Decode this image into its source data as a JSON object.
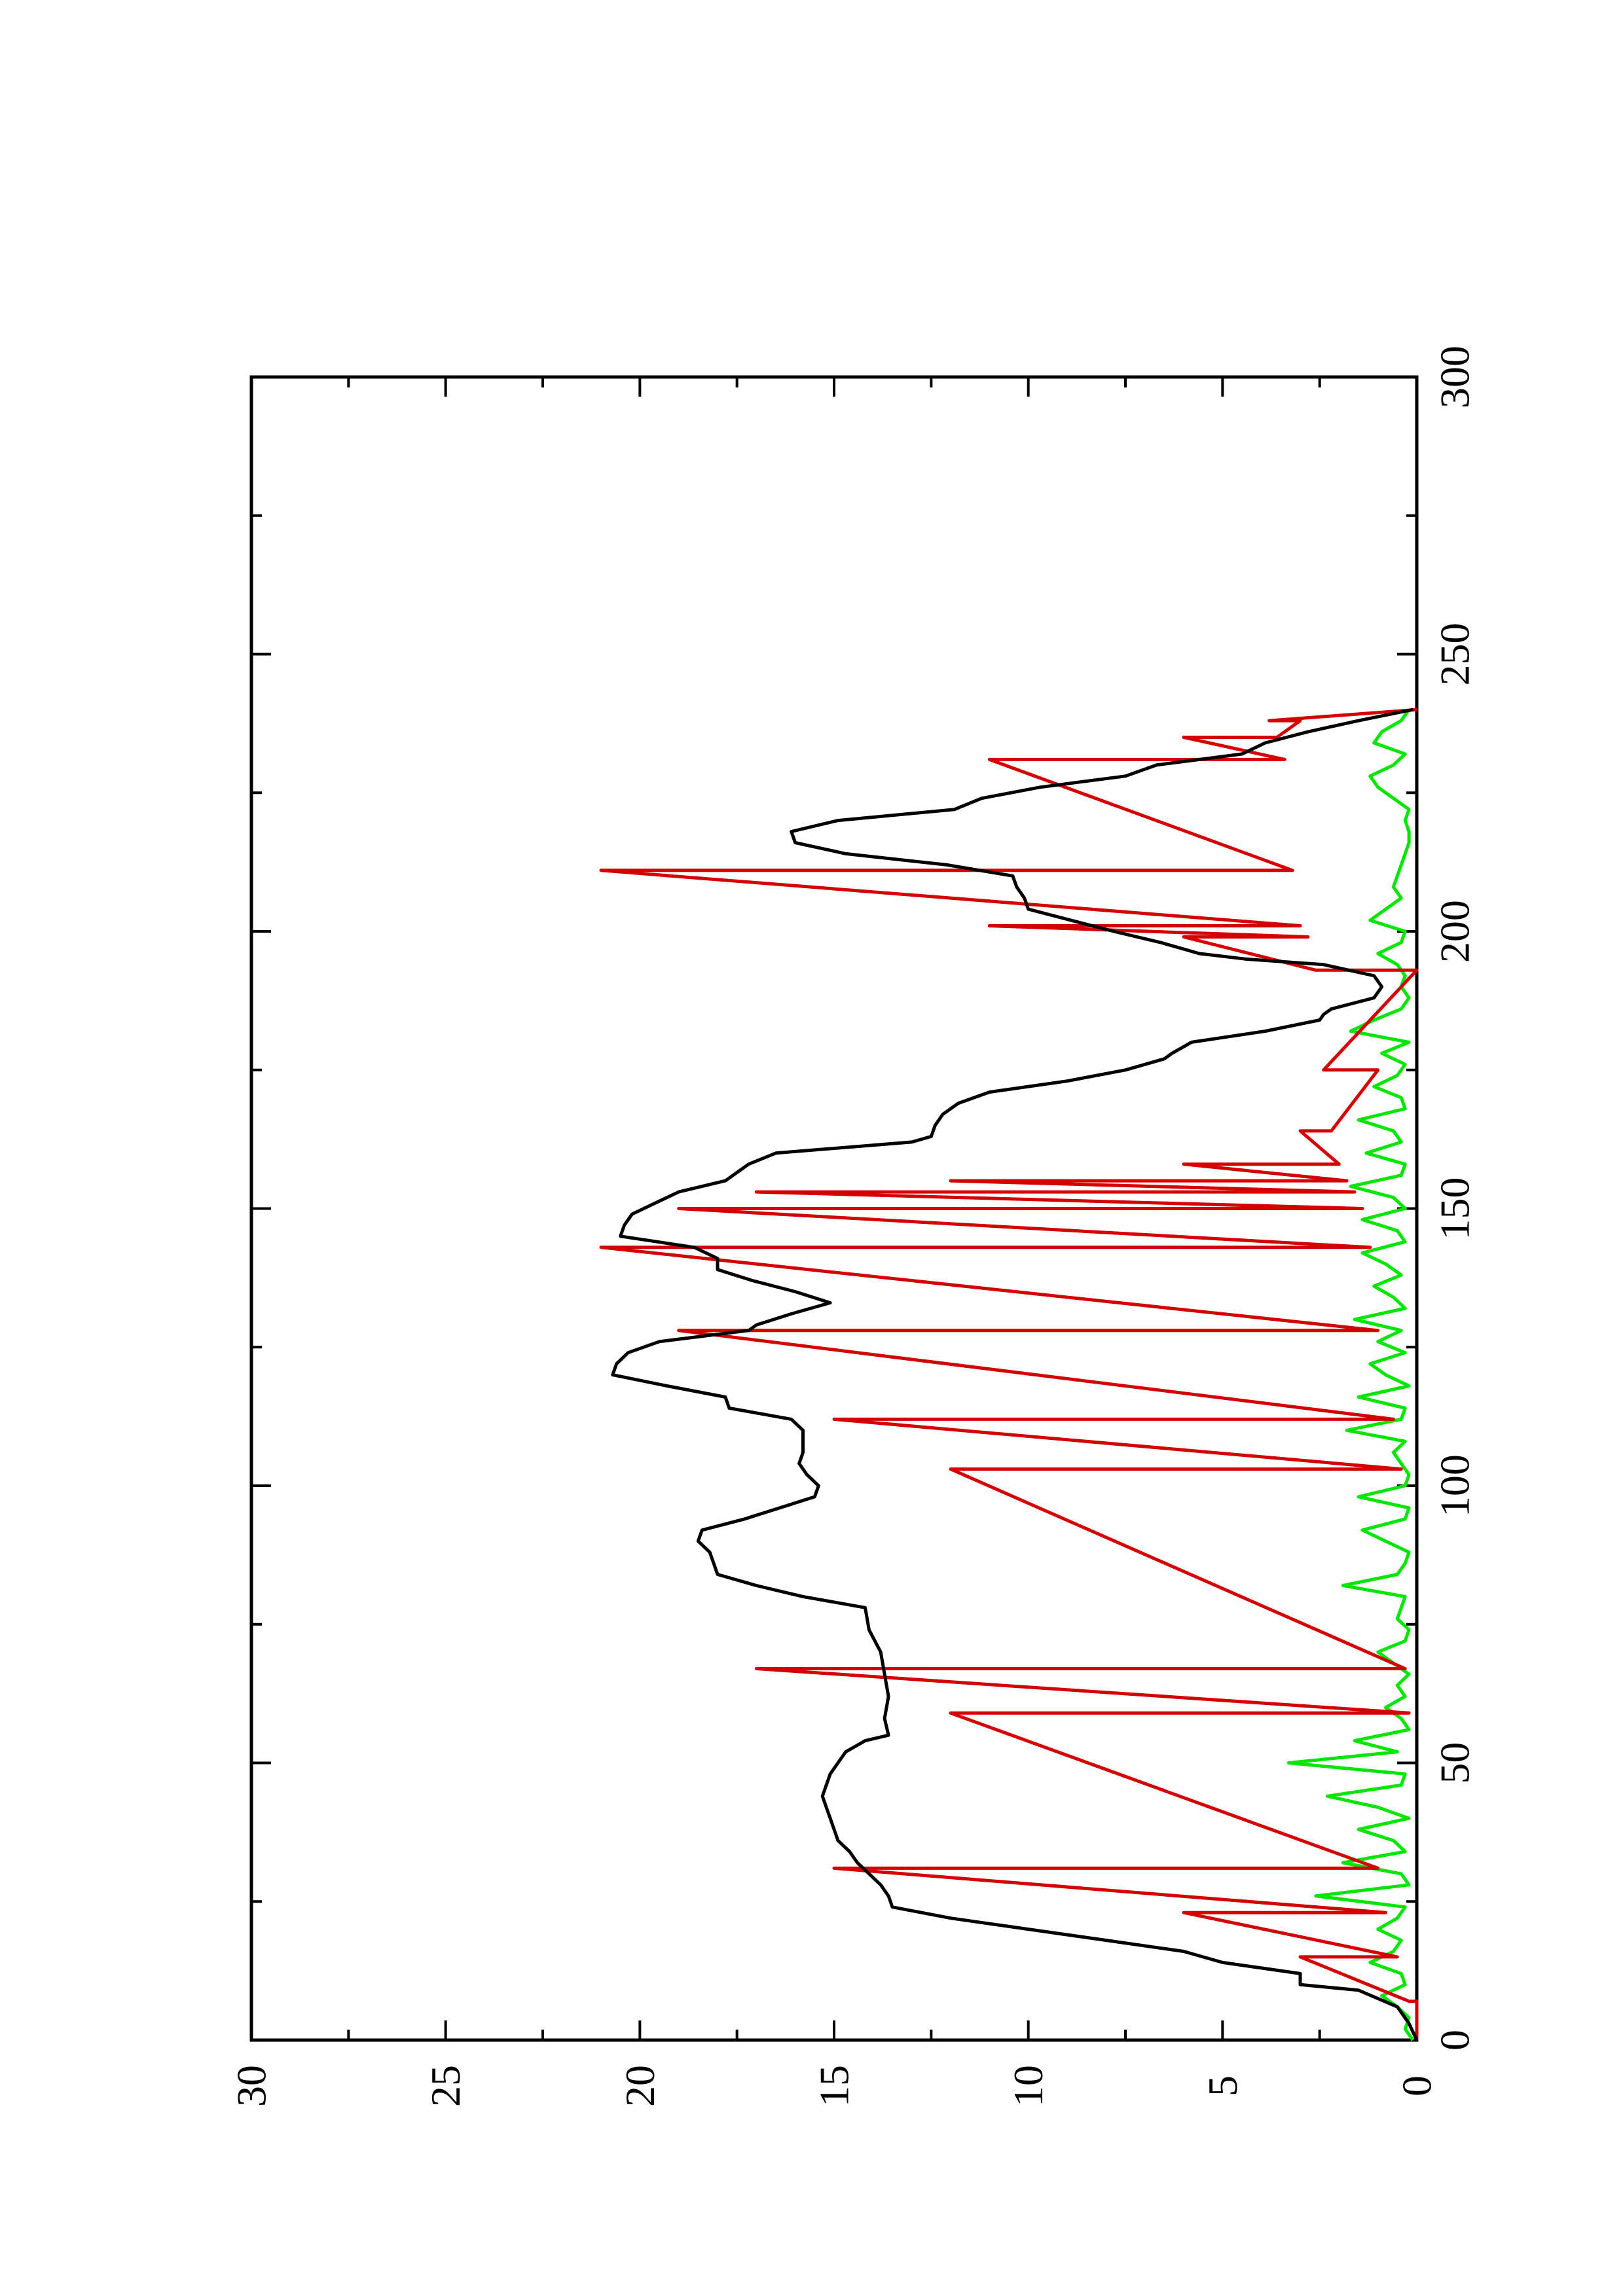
{
  "chart_data": {
    "type": "line",
    "title": "",
    "xlabel": "",
    "ylabel": "",
    "orientation": "rotated-90-ccw",
    "xlim": [
      0,
      300
    ],
    "ylim": [
      0,
      30
    ],
    "x_ticks": [
      0,
      50,
      100,
      150,
      200,
      250,
      300
    ],
    "y_ticks": [
      0,
      5,
      10,
      15,
      20,
      25,
      30
    ],
    "x_tick_labels": [
      "0",
      "50",
      "100",
      "150",
      "200",
      "250",
      "300"
    ],
    "y_tick_labels": [
      "0",
      "5",
      "10",
      "15",
      "20",
      "25",
      "30"
    ],
    "grid": false,
    "legend": "none",
    "series": [
      {
        "color": "#000000",
        "x": [
          0,
          3,
          6,
          9,
          10,
          12,
          13,
          14,
          16,
          18,
          20,
          22,
          24,
          26,
          28,
          30,
          32,
          34,
          36,
          38,
          40,
          42,
          44,
          46,
          48,
          50,
          52,
          54,
          55,
          58,
          62,
          66,
          70,
          74,
          78,
          80,
          82,
          84,
          86,
          88,
          90,
          92,
          94,
          96,
          98,
          100,
          102,
          104,
          106,
          108,
          110,
          112,
          114,
          116,
          118,
          120,
          122,
          124,
          126,
          128,
          129,
          131,
          133,
          135,
          137,
          139,
          141,
          143,
          145,
          147,
          149,
          151,
          153,
          155,
          157,
          158,
          160,
          162,
          163,
          165,
          167,
          169,
          171,
          173,
          175,
          177,
          178,
          180,
          182,
          184,
          185,
          186,
          188,
          190,
          192,
          194,
          195,
          196,
          198,
          200,
          202,
          204,
          206,
          208,
          210,
          212,
          214,
          216,
          218,
          220,
          222,
          224,
          226,
          228,
          230,
          232,
          234,
          236,
          238,
          240
        ],
        "values": [
          0,
          0.2,
          0.5,
          1.5,
          3,
          3,
          4,
          5,
          6,
          8,
          10,
          12,
          13.5,
          13.6,
          13.8,
          14.1,
          14.4,
          14.6,
          14.9,
          15,
          15.1,
          15.2,
          15.3,
          15.2,
          15.1,
          14.9,
          14.7,
          14.2,
          13.6,
          13.7,
          13.6,
          13.7,
          13.8,
          14.1,
          14.2,
          15.8,
          17,
          18,
          18.1,
          18.2,
          18.5,
          18.4,
          17.3,
          16.4,
          15.5,
          15.4,
          15.7,
          15.9,
          15.8,
          15.8,
          15.8,
          16.1,
          17.7,
          17.8,
          19.3,
          20.7,
          20.6,
          20.3,
          19.5,
          17.2,
          17,
          16.1,
          15.1,
          16,
          17.1,
          18,
          18,
          18.6,
          20.5,
          20.4,
          20.2,
          19.6,
          19,
          17.8,
          17.4,
          17.2,
          16.5,
          13,
          12.5,
          12.4,
          12.2,
          11.8,
          11,
          9,
          7.5,
          6.5,
          6.3,
          5.8,
          3.9,
          2.5,
          2.4,
          2.2,
          1.1,
          0.9,
          1.1,
          2.4,
          4.4,
          5.6,
          6.6,
          7.8,
          8.9,
          10,
          10.1,
          10.3,
          10.4,
          12.1,
          14.7,
          16,
          16.1,
          14.9,
          11.9,
          11.2,
          9.7,
          7.5,
          6.7,
          4.5,
          3.9,
          2.8,
          1.5,
          0.1
        ]
      },
      {
        "color": "#d40000",
        "x": [
          0,
          7,
          7,
          15,
          15,
          23,
          23,
          31,
          31,
          59,
          59,
          67,
          67,
          103,
          103,
          112,
          112,
          128,
          128,
          143,
          143,
          150,
          150,
          153,
          153,
          155,
          155,
          158,
          158,
          164,
          164,
          175,
          175,
          193,
          193,
          199,
          199,
          201,
          201,
          211,
          211,
          231,
          231,
          235,
          235,
          238,
          238,
          240
        ],
        "values": [
          0,
          0,
          0.2,
          3,
          0.5,
          6,
          0.8,
          15,
          1,
          12,
          0.2,
          17,
          0.3,
          12,
          0.4,
          15,
          0.6,
          19,
          1,
          21,
          1.2,
          19,
          1.4,
          17,
          1.6,
          12,
          1.8,
          6,
          2,
          3,
          2.2,
          1,
          2.4,
          0,
          2.6,
          6,
          2.8,
          11,
          3,
          21,
          3.2,
          11,
          3.4,
          6,
          3.6,
          3,
          3.8,
          0
        ]
      },
      {
        "color": "#00e600",
        "x": [
          0,
          2,
          4,
          6,
          8,
          10,
          12,
          14,
          16,
          18,
          20,
          22,
          24,
          26,
          28,
          30,
          32,
          34,
          36,
          38,
          40,
          42,
          44,
          46,
          48,
          50,
          52,
          54,
          56,
          58,
          60,
          62,
          64,
          66,
          68,
          70,
          72,
          74,
          76,
          78,
          80,
          82,
          84,
          86,
          88,
          90,
          92,
          94,
          96,
          98,
          100,
          102,
          104,
          106,
          108,
          110,
          112,
          114,
          116,
          118,
          120,
          122,
          124,
          126,
          128,
          130,
          132,
          134,
          136,
          138,
          140,
          142,
          144,
          146,
          148,
          150,
          152,
          154,
          156,
          158,
          160,
          162,
          164,
          166,
          168,
          170,
          172,
          174,
          176,
          178,
          180,
          182,
          184,
          186,
          188,
          190,
          192,
          194,
          196,
          198,
          200,
          202,
          204,
          206,
          208,
          210,
          212,
          214,
          216,
          218,
          220,
          222,
          224,
          226,
          228,
          230,
          232,
          234,
          236,
          238,
          240
        ],
        "values": [
          0.1,
          0.3,
          0.2,
          0.5,
          0.9,
          0.3,
          0.4,
          1.2,
          0.6,
          0.4,
          1.0,
          0.5,
          0.3,
          2.6,
          0.2,
          0.4,
          1.9,
          0.3,
          0.6,
          1.5,
          0.2,
          1.0,
          2.3,
          0.4,
          0.3,
          3.3,
          0.5,
          1.6,
          0.2,
          0.4,
          0.8,
          0.3,
          0.5,
          0.2,
          0.6,
          1.0,
          0.3,
          0.2,
          0.5,
          0.4,
          0.3,
          1.9,
          0.5,
          0.3,
          0.2,
          0.8,
          1.4,
          0.3,
          0.2,
          1.5,
          0.3,
          0.2,
          0.4,
          0.6,
          0.3,
          1.8,
          0.4,
          0.3,
          1.5,
          0.2,
          0.8,
          1.2,
          0.3,
          1.0,
          0.4,
          1.6,
          0.3,
          0.6,
          1.1,
          0.4,
          0.8,
          1.4,
          0.3,
          0.5,
          1.4,
          0.3,
          0.6,
          1.7,
          0.4,
          0.3,
          1.3,
          0.4,
          0.6,
          1.5,
          0.3,
          0.4,
          1.1,
          0.5,
          0.3,
          0.9,
          0.2,
          1.7,
          1.1,
          0.4,
          0.2,
          0.4,
          0.3,
          0.5,
          1.0,
          0.4,
          0.3,
          1.2,
          0.8,
          0.4,
          0.6,
          0.5,
          0.4,
          0.3,
          0.2,
          0.2,
          0.3,
          0.2,
          0.6,
          1.0,
          1.2,
          0.6,
          0.3,
          1.1,
          0.9,
          0.4,
          0.2
        ]
      }
    ]
  }
}
